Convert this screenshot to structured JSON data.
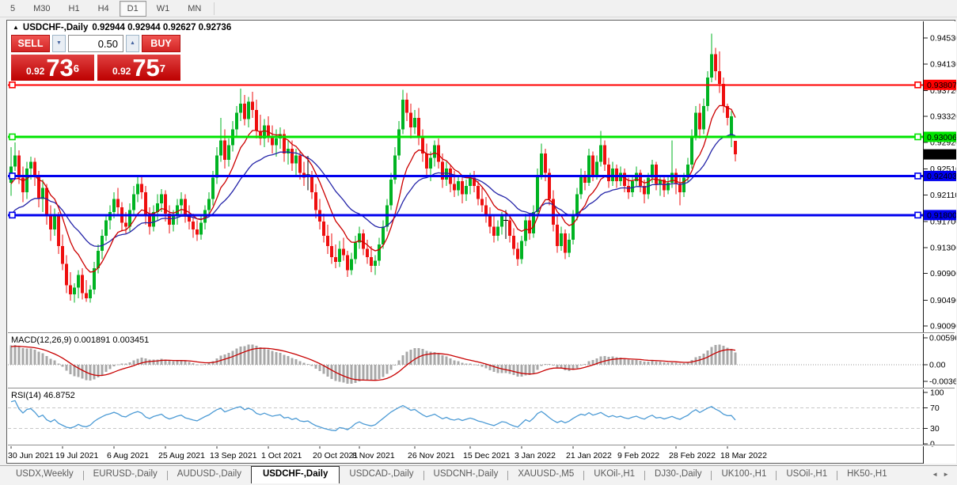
{
  "toolbar": {
    "timeframes": [
      {
        "label": "5",
        "selected": false
      },
      {
        "label": "M30",
        "selected": false
      },
      {
        "label": "H1",
        "selected": false
      },
      {
        "label": "H4",
        "selected": false
      },
      {
        "label": "D1",
        "selected": true
      },
      {
        "label": "W1",
        "selected": false
      },
      {
        "label": "MN",
        "selected": false
      }
    ]
  },
  "chart_header": {
    "expand_icon": "▲",
    "symbol": "USDCHF-,Daily",
    "ohlc_text": "0.92944 0.92944 0.92627 0.92736"
  },
  "trade_panel": {
    "sell_label": "SELL",
    "buy_label": "BUY",
    "volume": "0.50",
    "spin_down_icon": "▼",
    "spin_up_icon": "▲",
    "sell_price_prefix": "0.92",
    "sell_price_big": "73",
    "sell_price_sup": "6",
    "buy_price_prefix": "0.92",
    "buy_price_big": "75",
    "buy_price_sup": "7"
  },
  "macd_panel": {
    "label": "MACD(12,26,9) 0.001891 0.003451",
    "axis_labels": [
      {
        "text": "0.005963",
        "value": 0.005963
      },
      {
        "text": "0.00",
        "value": 0
      },
      {
        "text": "-0.003664",
        "value": -0.003664
      }
    ]
  },
  "rsi_panel": {
    "label": "RSI(14) 46.8752",
    "axis_labels": [
      100,
      70,
      30,
      0
    ],
    "dashed_levels": [
      70,
      30
    ]
  },
  "tabs": {
    "items": [
      "USDX,Weekly",
      "EURUSD-,Daily",
      "AUDUSD-,Daily",
      "USDCHF-,Daily",
      "USDCAD-,Daily",
      "USDCNH-,Daily",
      "XAUUSD-,M5",
      "UKOil-,H1",
      "DJ30-,Daily",
      "UK100-,H1",
      "USOil-,H1",
      "HK50-,H1"
    ],
    "selected_index": 3,
    "scroll_left_icon": "◄",
    "scroll_right_icon": "►"
  },
  "chart_data": {
    "type": "candlestick",
    "symbol": "USDCHF-",
    "timeframe": "Daily",
    "current_bar": {
      "open": 0.92944,
      "high": 0.92944,
      "low": 0.92627,
      "close": 0.92736
    },
    "colors": {
      "bull": "#00b322",
      "bear": "#ee0f0f",
      "doji": "#000000",
      "ma_fast": "#cc0000",
      "ma_slow": "#2424a8",
      "macd_bar": "#a8a8a8",
      "macd_signal": "#c80000",
      "rsi_line": "#4d9bd5"
    },
    "y_axis_ticks": [
      0.9453,
      0.9413,
      0.9372,
      0.9332,
      0.9292,
      0.9251,
      0.9211,
      0.917,
      0.913,
      0.909,
      0.9049,
      0.9009
    ],
    "current_price_marker": {
      "label": "0.92736",
      "price": 0.92736,
      "bg": "#000000",
      "fg": "#ffffff"
    },
    "hlines": [
      {
        "price": 0.93807,
        "label": "0.93807",
        "color": "#ff0000",
        "stroke": 2,
        "text_color": "#ffffff"
      },
      {
        "price": 0.93006,
        "label": "0.93006",
        "color": "#00e400",
        "stroke": 3,
        "text_color": "#000000"
      },
      {
        "price": 0.92403,
        "label": "0.92403",
        "color": "#0000ee",
        "stroke": 3,
        "text_color": "#ffffff"
      },
      {
        "price": 0.918,
        "label": "0.91800",
        "color": "#0000ee",
        "stroke": 3,
        "text_color": "#ffffff"
      }
    ],
    "indicators": {
      "ma_fast": {
        "type": "EMA",
        "period": 10
      },
      "ma_slow": {
        "type": "EMA",
        "period": 25
      },
      "macd": {
        "fast": 12,
        "slow": 26,
        "signal": 9,
        "current_main": 0.001891,
        "current_signal": 0.003451
      },
      "rsi": {
        "period": 14,
        "current": 46.8752
      }
    },
    "time_axis_labels": [
      {
        "text": "30 Jun 2021",
        "index": 0
      },
      {
        "text": "19 Jul 2021",
        "index": 13
      },
      {
        "text": "6 Aug 2021",
        "index": 26
      },
      {
        "text": "25 Aug 2021",
        "index": 39
      },
      {
        "text": "13 Sep 2021",
        "index": 52
      },
      {
        "text": "1 Oct 2021",
        "index": 65
      },
      {
        "text": "20 Oct 2021",
        "index": 78
      },
      {
        "text": "8 Nov 2021",
        "index": 88
      },
      {
        "text": "26 Nov 2021",
        "index": 102
      },
      {
        "text": "15 Dec 2021",
        "index": 116
      },
      {
        "text": "3 Jan 2022",
        "index": 129
      },
      {
        "text": "21 Jan 2022",
        "index": 142
      },
      {
        "text": "9 Feb 2022",
        "index": 155
      },
      {
        "text": "28 Feb 2022",
        "index": 168
      },
      {
        "text": "18 Mar 2022",
        "index": 181
      }
    ],
    "pre_closes_pips": [
      9035,
      9048,
      9060,
      9055,
      9070,
      9082,
      9075,
      9090,
      9105,
      9112,
      9100,
      9118,
      9135,
      9128,
      9142,
      9155,
      9148,
      9165,
      9180,
      9175,
      9190,
      9205,
      9198,
      9215,
      9228,
      9222,
      9235,
      9248,
      9242,
      9252
    ],
    "candles_pips": [
      [
        9230,
        9285,
        9210,
        9255
      ],
      [
        9255,
        9292,
        9248,
        9272
      ],
      [
        9272,
        9280,
        9228,
        9238
      ],
      [
        9238,
        9255,
        9200,
        9215
      ],
      [
        9215,
        9262,
        9205,
        9252
      ],
      [
        9252,
        9270,
        9235,
        9262
      ],
      [
        9262,
        9268,
        9225,
        9240
      ],
      [
        9240,
        9248,
        9192,
        9205
      ],
      [
        9205,
        9235,
        9185,
        9222
      ],
      [
        9222,
        9228,
        9165,
        9180
      ],
      [
        9180,
        9195,
        9140,
        9158
      ],
      [
        9158,
        9190,
        9148,
        9178
      ],
      [
        9178,
        9185,
        9120,
        9132
      ],
      [
        9132,
        9150,
        9095,
        9105
      ],
      [
        9105,
        9118,
        9060,
        9072
      ],
      [
        9072,
        9092,
        9048,
        9058
      ],
      [
        9058,
        9075,
        9045,
        9068
      ],
      [
        9068,
        9095,
        9052,
        9088
      ],
      [
        9088,
        9098,
        9050,
        9060
      ],
      [
        9060,
        9080,
        9046,
        9052
      ],
      [
        9052,
        9072,
        9045,
        9065
      ],
      [
        9065,
        9108,
        9058,
        9098
      ],
      [
        9098,
        9135,
        9090,
        9125
      ],
      [
        9125,
        9158,
        9112,
        9148
      ],
      [
        9148,
        9180,
        9140,
        9172
      ],
      [
        9172,
        9195,
        9158,
        9185
      ],
      [
        9185,
        9215,
        9175,
        9205
      ],
      [
        9205,
        9222,
        9180,
        9192
      ],
      [
        9192,
        9200,
        9155,
        9168
      ],
      [
        9168,
        9185,
        9152,
        9162
      ],
      [
        9162,
        9198,
        9155,
        9188
      ],
      [
        9188,
        9225,
        9180,
        9212
      ],
      [
        9212,
        9240,
        9200,
        9228
      ],
      [
        9228,
        9242,
        9205,
        9215
      ],
      [
        9215,
        9225,
        9165,
        9178
      ],
      [
        9178,
        9192,
        9150,
        9162
      ],
      [
        9162,
        9195,
        9155,
        9185
      ],
      [
        9185,
        9212,
        9172,
        9198
      ],
      [
        9198,
        9220,
        9185,
        9212
      ],
      [
        9212,
        9218,
        9170,
        9182
      ],
      [
        9182,
        9195,
        9152,
        9165
      ],
      [
        9165,
        9188,
        9155,
        9178
      ],
      [
        9178,
        9205,
        9165,
        9195
      ],
      [
        9195,
        9215,
        9182,
        9205
      ],
      [
        9205,
        9212,
        9168,
        9180
      ],
      [
        9180,
        9195,
        9158,
        9170
      ],
      [
        9170,
        9182,
        9145,
        9158
      ],
      [
        9158,
        9172,
        9140,
        9150
      ],
      [
        9150,
        9178,
        9142,
        9168
      ],
      [
        9168,
        9195,
        9158,
        9188
      ],
      [
        9188,
        9215,
        9180,
        9205
      ],
      [
        9205,
        9248,
        9195,
        9238
      ],
      [
        9238,
        9285,
        9228,
        9272
      ],
      [
        9272,
        9330,
        9262,
        9295
      ],
      [
        9295,
        9312,
        9252,
        9265
      ],
      [
        9265,
        9298,
        9255,
        9288
      ],
      [
        9288,
        9325,
        9278,
        9312
      ],
      [
        9312,
        9348,
        9300,
        9338
      ],
      [
        9338,
        9375,
        9325,
        9352
      ],
      [
        9352,
        9365,
        9318,
        9328
      ],
      [
        9328,
        9362,
        9315,
        9355
      ],
      [
        9355,
        9370,
        9330,
        9342
      ],
      [
        9342,
        9358,
        9298,
        9310
      ],
      [
        9310,
        9335,
        9288,
        9298
      ],
      [
        9298,
        9328,
        9285,
        9318
      ],
      [
        9318,
        9332,
        9292,
        9302
      ],
      [
        9302,
        9318,
        9275,
        9288
      ],
      [
        9288,
        9312,
        9270,
        9298
      ],
      [
        9298,
        9315,
        9282,
        9305
      ],
      [
        9305,
        9312,
        9262,
        9275
      ],
      [
        9275,
        9295,
        9258,
        9282
      ],
      [
        9282,
        9295,
        9248,
        9260
      ],
      [
        9260,
        9282,
        9240,
        9272
      ],
      [
        9272,
        9280,
        9235,
        9245
      ],
      [
        9245,
        9262,
        9225,
        9238
      ],
      [
        9242,
        9271,
        9218,
        9242
      ],
      [
        9242,
        9248,
        9205,
        9215
      ],
      [
        9215,
        9228,
        9175,
        9188
      ],
      [
        9188,
        9205,
        9158,
        9170
      ],
      [
        9170,
        9182,
        9138,
        9148
      ],
      [
        9148,
        9165,
        9120,
        9132
      ],
      [
        9132,
        9152,
        9105,
        9115
      ],
      [
        9115,
        9135,
        9098,
        9108
      ],
      [
        9108,
        9140,
        9100,
        9128
      ],
      [
        9128,
        9145,
        9110,
        9118
      ],
      [
        9118,
        9125,
        9085,
        9095
      ],
      [
        9095,
        9122,
        9088,
        9112
      ],
      [
        9112,
        9148,
        9105,
        9138
      ],
      [
        9138,
        9162,
        9128,
        9152
      ],
      [
        9152,
        9158,
        9118,
        9128
      ],
      [
        9128,
        9142,
        9105,
        9115
      ],
      [
        9115,
        9132,
        9092,
        9102
      ],
      [
        9102,
        9118,
        9088,
        9110
      ],
      [
        9110,
        9145,
        9102,
        9135
      ],
      [
        9135,
        9172,
        9128,
        9162
      ],
      [
        9162,
        9205,
        9155,
        9195
      ],
      [
        9195,
        9245,
        9188,
        9235
      ],
      [
        9235,
        9285,
        9228,
        9272
      ],
      [
        9272,
        9325,
        9265,
        9312
      ],
      [
        9312,
        9373,
        9305,
        9358
      ],
      [
        9358,
        9368,
        9325,
        9338
      ],
      [
        9338,
        9352,
        9298,
        9315
      ],
      [
        9315,
        9342,
        9305,
        9330
      ],
      [
        9330,
        9345,
        9288,
        9302
      ],
      [
        9302,
        9312,
        9262,
        9275
      ],
      [
        9275,
        9290,
        9238,
        9252
      ],
      [
        9252,
        9278,
        9232,
        9268
      ],
      [
        9268,
        9295,
        9255,
        9288
      ],
      [
        9288,
        9298,
        9252,
        9262
      ],
      [
        9262,
        9275,
        9222,
        9235
      ],
      [
        9235,
        9262,
        9225,
        9252
      ],
      [
        9252,
        9258,
        9215,
        9228
      ],
      [
        9228,
        9248,
        9208,
        9218
      ],
      [
        9218,
        9242,
        9210,
        9232
      ],
      [
        9232,
        9238,
        9198,
        9212
      ],
      [
        9212,
        9235,
        9202,
        9225
      ],
      [
        9225,
        9245,
        9212,
        9238
      ],
      [
        9238,
        9248,
        9215,
        9225
      ],
      [
        9225,
        9232,
        9195,
        9205
      ],
      [
        9205,
        9222,
        9185,
        9195
      ],
      [
        9195,
        9208,
        9168,
        9178
      ],
      [
        9178,
        9192,
        9152,
        9162
      ],
      [
        9162,
        9178,
        9138,
        9148
      ],
      [
        9148,
        9172,
        9140,
        9162
      ],
      [
        9162,
        9185,
        9150,
        9178
      ],
      [
        9172,
        9188,
        9143,
        9172
      ],
      [
        9172,
        9178,
        9138,
        9148
      ],
      [
        9148,
        9160,
        9118,
        9128
      ],
      [
        9128,
        9138,
        9102,
        9112
      ],
      [
        9112,
        9148,
        9105,
        9140
      ],
      [
        9140,
        9182,
        9132,
        9172
      ],
      [
        9172,
        9180,
        9142,
        9152
      ],
      [
        9152,
        9195,
        9145,
        9185
      ],
      [
        9185,
        9252,
        9178,
        9242
      ],
      [
        9242,
        9290,
        9235,
        9275
      ],
      [
        9275,
        9282,
        9232,
        9245
      ],
      [
        9245,
        9252,
        9195,
        9205
      ],
      [
        9205,
        9218,
        9155,
        9165
      ],
      [
        9165,
        9178,
        9122,
        9132
      ],
      [
        9132,
        9162,
        9125,
        9152
      ],
      [
        9152,
        9158,
        9112,
        9122
      ],
      [
        9122,
        9152,
        9115,
        9142
      ],
      [
        9142,
        9188,
        9135,
        9178
      ],
      [
        9178,
        9222,
        9172,
        9212
      ],
      [
        9212,
        9252,
        9205,
        9242
      ],
      [
        9242,
        9248,
        9218,
        9230
      ],
      [
        9230,
        9282,
        9225,
        9272
      ],
      [
        9272,
        9278,
        9232,
        9242
      ],
      [
        9242,
        9272,
        9235,
        9262
      ],
      [
        9262,
        9310,
        9255,
        9288
      ],
      [
        9288,
        9295,
        9248,
        9258
      ],
      [
        9258,
        9268,
        9222,
        9232
      ],
      [
        9232,
        9262,
        9225,
        9252
      ],
      [
        9252,
        9258,
        9222,
        9232
      ],
      [
        9232,
        9255,
        9225,
        9245
      ],
      [
        9245,
        9252,
        9215,
        9225
      ],
      [
        9225,
        9238,
        9205,
        9215
      ],
      [
        9215,
        9242,
        9208,
        9232
      ],
      [
        9232,
        9255,
        9225,
        9245
      ],
      [
        9245,
        9250,
        9215,
        9225
      ],
      [
        9225,
        9235,
        9198,
        9212
      ],
      [
        9212,
        9245,
        9205,
        9238
      ],
      [
        9238,
        9265,
        9230,
        9258
      ],
      [
        9258,
        9262,
        9218,
        9228
      ],
      [
        9228,
        9242,
        9210,
        9235
      ],
      [
        9235,
        9242,
        9208,
        9218
      ],
      [
        9218,
        9240,
        9212,
        9230
      ],
      [
        9230,
        9295,
        9222,
        9245
      ],
      [
        9245,
        9252,
        9212,
        9228
      ],
      [
        9228,
        9238,
        9195,
        9215
      ],
      [
        9215,
        9245,
        9208,
        9238
      ],
      [
        9238,
        9268,
        9230,
        9258
      ],
      [
        9258,
        9312,
        9252,
        9302
      ],
      [
        9302,
        9348,
        9295,
        9338
      ],
      [
        9338,
        9352,
        9298,
        9312
      ],
      [
        9312,
        9360,
        9305,
        9348
      ],
      [
        9348,
        9402,
        9340,
        9392
      ],
      [
        9392,
        9460,
        9385,
        9428
      ],
      [
        9428,
        9438,
        9388,
        9402
      ],
      [
        9402,
        9432,
        9368,
        9382
      ],
      [
        9382,
        9392,
        9338,
        9348
      ],
      [
        9348,
        9352,
        9318,
        9330
      ],
      [
        9302,
        9340,
        9285,
        9332
      ],
      [
        9294.4,
        9294.4,
        9262.7,
        9273.6
      ]
    ]
  }
}
